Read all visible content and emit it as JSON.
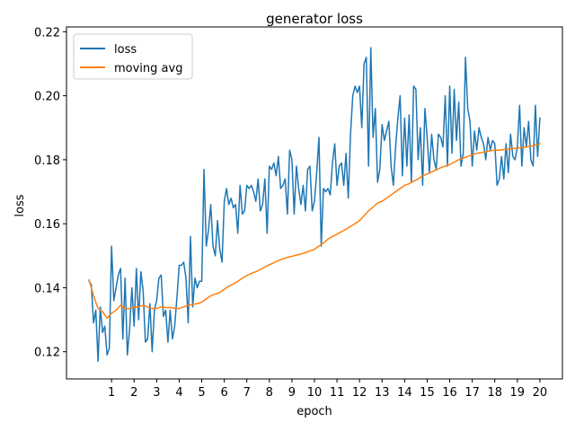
{
  "chart_data": {
    "type": "line",
    "title": "generator loss",
    "xlabel": "epoch",
    "ylabel": "loss",
    "xlim": [
      -1,
      21
    ],
    "ylim": [
      0.1115,
      0.2215
    ],
    "xticks": [
      1,
      2,
      3,
      4,
      5,
      6,
      7,
      8,
      9,
      10,
      11,
      12,
      13,
      14,
      15,
      16,
      17,
      18,
      19,
      20
    ],
    "yticks": [
      0.12,
      0.14,
      0.16,
      0.18,
      0.2,
      0.22
    ],
    "legend_position": "top-left",
    "grid": false,
    "series": [
      {
        "name": "loss",
        "color": "#1f77b4",
        "x": [
          0,
          0.1,
          0.2,
          0.3,
          0.4,
          0.5,
          0.6,
          0.7,
          0.8,
          0.9,
          1.0,
          1.1,
          1.2,
          1.3,
          1.4,
          1.5,
          1.6,
          1.7,
          1.8,
          1.9,
          2.0,
          2.1,
          2.2,
          2.3,
          2.4,
          2.5,
          2.6,
          2.7,
          2.8,
          2.9,
          3.0,
          3.1,
          3.2,
          3.3,
          3.4,
          3.5,
          3.6,
          3.7,
          3.8,
          3.9,
          4.0,
          4.1,
          4.2,
          4.3,
          4.4,
          4.5,
          4.6,
          4.7,
          4.8,
          4.9,
          5.0,
          5.1,
          5.2,
          5.3,
          5.4,
          5.5,
          5.6,
          5.7,
          5.8,
          5.9,
          6.0,
          6.1,
          6.2,
          6.3,
          6.4,
          6.5,
          6.6,
          6.7,
          6.8,
          6.9,
          7.0,
          7.1,
          7.2,
          7.3,
          7.4,
          7.5,
          7.6,
          7.7,
          7.8,
          7.9,
          8.0,
          8.1,
          8.2,
          8.3,
          8.4,
          8.5,
          8.6,
          8.7,
          8.8,
          8.9,
          9.0,
          9.1,
          9.2,
          9.3,
          9.4,
          9.5,
          9.6,
          9.7,
          9.8,
          9.9,
          10.0,
          10.1,
          10.2,
          10.3,
          10.4,
          10.5,
          10.6,
          10.7,
          10.8,
          10.9,
          11.0,
          11.1,
          11.2,
          11.3,
          11.4,
          11.5,
          11.6,
          11.7,
          11.8,
          11.9,
          12.0,
          12.1,
          12.2,
          12.3,
          12.4,
          12.5,
          12.6,
          12.7,
          12.8,
          12.9,
          13.0,
          13.1,
          13.2,
          13.3,
          13.4,
          13.5,
          13.6,
          13.7,
          13.8,
          13.9,
          14.0,
          14.1,
          14.2,
          14.3,
          14.4,
          14.5,
          14.6,
          14.7,
          14.8,
          14.9,
          15.0,
          15.1,
          15.2,
          15.3,
          15.4,
          15.5,
          15.6,
          15.7,
          15.8,
          15.9,
          16.0,
          16.1,
          16.2,
          16.3,
          16.4,
          16.5,
          16.6,
          16.7,
          16.8,
          16.9,
          17.0,
          17.1,
          17.2,
          17.3,
          17.4,
          17.5,
          17.6,
          17.7,
          17.8,
          17.9,
          18.0,
          18.1,
          18.2,
          18.3,
          18.4,
          18.5,
          18.6,
          18.7,
          18.8,
          18.9,
          19.0,
          19.1,
          19.2,
          19.3,
          19.4,
          19.5,
          19.6,
          19.7,
          19.8,
          19.9,
          20.0
        ],
        "y": [
          0.142,
          0.141,
          0.129,
          0.133,
          0.117,
          0.134,
          0.126,
          0.128,
          0.119,
          0.121,
          0.153,
          0.136,
          0.14,
          0.144,
          0.146,
          0.124,
          0.143,
          0.119,
          0.127,
          0.14,
          0.128,
          0.146,
          0.13,
          0.145,
          0.139,
          0.123,
          0.124,
          0.135,
          0.12,
          0.133,
          0.136,
          0.143,
          0.144,
          0.131,
          0.133,
          0.123,
          0.133,
          0.124,
          0.128,
          0.137,
          0.147,
          0.147,
          0.148,
          0.143,
          0.129,
          0.156,
          0.134,
          0.143,
          0.14,
          0.142,
          0.142,
          0.177,
          0.153,
          0.158,
          0.166,
          0.153,
          0.15,
          0.161,
          0.152,
          0.148,
          0.167,
          0.171,
          0.166,
          0.168,
          0.165,
          0.166,
          0.157,
          0.172,
          0.163,
          0.164,
          0.172,
          0.171,
          0.172,
          0.17,
          0.167,
          0.174,
          0.164,
          0.166,
          0.174,
          0.157,
          0.178,
          0.177,
          0.179,
          0.175,
          0.181,
          0.171,
          0.172,
          0.174,
          0.163,
          0.183,
          0.18,
          0.163,
          0.178,
          0.171,
          0.166,
          0.172,
          0.164,
          0.177,
          0.178,
          0.164,
          0.167,
          0.176,
          0.187,
          0.153,
          0.171,
          0.17,
          0.171,
          0.169,
          0.179,
          0.185,
          0.172,
          0.178,
          0.179,
          0.172,
          0.182,
          0.168,
          0.188,
          0.2,
          0.203,
          0.201,
          0.203,
          0.19,
          0.21,
          0.212,
          0.178,
          0.215,
          0.187,
          0.196,
          0.173,
          0.177,
          0.191,
          0.186,
          0.189,
          0.192,
          0.178,
          0.172,
          0.184,
          0.193,
          0.2,
          0.175,
          0.193,
          0.178,
          0.194,
          0.173,
          0.203,
          0.202,
          0.18,
          0.19,
          0.172,
          0.196,
          0.187,
          0.176,
          0.188,
          0.18,
          0.177,
          0.188,
          0.187,
          0.184,
          0.2,
          0.178,
          0.203,
          0.182,
          0.202,
          0.186,
          0.198,
          0.178,
          0.182,
          0.212,
          0.196,
          0.192,
          0.178,
          0.189,
          0.183,
          0.19,
          0.187,
          0.185,
          0.18,
          0.187,
          0.183,
          0.186,
          0.185,
          0.172,
          0.174,
          0.181,
          0.174,
          0.185,
          0.176,
          0.188,
          0.181,
          0.18,
          0.184,
          0.197,
          0.178,
          0.19,
          0.184,
          0.192,
          0.18,
          0.178,
          0.197,
          0.181,
          0.193
        ]
      },
      {
        "name": "moving avg",
        "color": "#ff7f0e",
        "x": [
          0,
          0.2,
          0.4,
          0.6,
          0.8,
          1.0,
          1.2,
          1.4,
          1.6,
          1.8,
          2.0,
          2.2,
          2.4,
          2.6,
          2.8,
          3.0,
          3.2,
          3.4,
          3.6,
          3.8,
          4.0,
          4.2,
          4.4,
          4.6,
          4.8,
          5.0,
          5.2,
          5.4,
          5.6,
          5.8,
          6.0,
          6.2,
          6.4,
          6.6,
          6.8,
          7.0,
          7.2,
          7.4,
          7.6,
          7.8,
          8.0,
          8.2,
          8.4,
          8.6,
          8.8,
          9.0,
          9.2,
          9.4,
          9.6,
          9.8,
          10.0,
          10.2,
          10.4,
          10.6,
          10.8,
          11.0,
          11.2,
          11.4,
          11.6,
          11.8,
          12.0,
          12.2,
          12.4,
          12.6,
          12.8,
          13.0,
          13.2,
          13.4,
          13.6,
          13.8,
          14.0,
          14.2,
          14.4,
          14.6,
          14.8,
          15.0,
          15.2,
          15.4,
          15.6,
          15.8,
          16.0,
          16.2,
          16.4,
          16.6,
          16.8,
          17.0,
          17.2,
          17.4,
          17.6,
          17.8,
          18.0,
          18.2,
          18.4,
          18.6,
          18.8,
          19.0,
          19.2,
          19.4,
          19.6,
          19.8,
          20.0
        ],
        "y": [
          0.1425,
          0.1375,
          0.1335,
          0.1325,
          0.1305,
          0.132,
          0.133,
          0.1345,
          0.1335,
          0.1335,
          0.134,
          0.134,
          0.1345,
          0.134,
          0.1335,
          0.1335,
          0.134,
          0.1338,
          0.1338,
          0.1336,
          0.1335,
          0.134,
          0.1345,
          0.1348,
          0.135,
          0.1355,
          0.1365,
          0.1375,
          0.138,
          0.1385,
          0.1395,
          0.1405,
          0.1412,
          0.142,
          0.143,
          0.1438,
          0.1445,
          0.145,
          0.1457,
          0.1465,
          0.1472,
          0.1478,
          0.1485,
          0.149,
          0.1495,
          0.1498,
          0.1502,
          0.1505,
          0.151,
          0.1515,
          0.152,
          0.153,
          0.154,
          0.1552,
          0.156,
          0.1567,
          0.1575,
          0.1583,
          0.1592,
          0.16,
          0.161,
          0.1625,
          0.164,
          0.1652,
          0.1665,
          0.167,
          0.168,
          0.169,
          0.17,
          0.171,
          0.172,
          0.1725,
          0.1733,
          0.174,
          0.175,
          0.1755,
          0.1762,
          0.1768,
          0.1775,
          0.178,
          0.1785,
          0.1792,
          0.18,
          0.1805,
          0.181,
          0.1815,
          0.182,
          0.1822,
          0.1825,
          0.1828,
          0.183,
          0.183,
          0.1832,
          0.1833,
          0.1835,
          0.1836,
          0.1838,
          0.184,
          0.1842,
          0.1846,
          0.185
        ]
      }
    ]
  }
}
